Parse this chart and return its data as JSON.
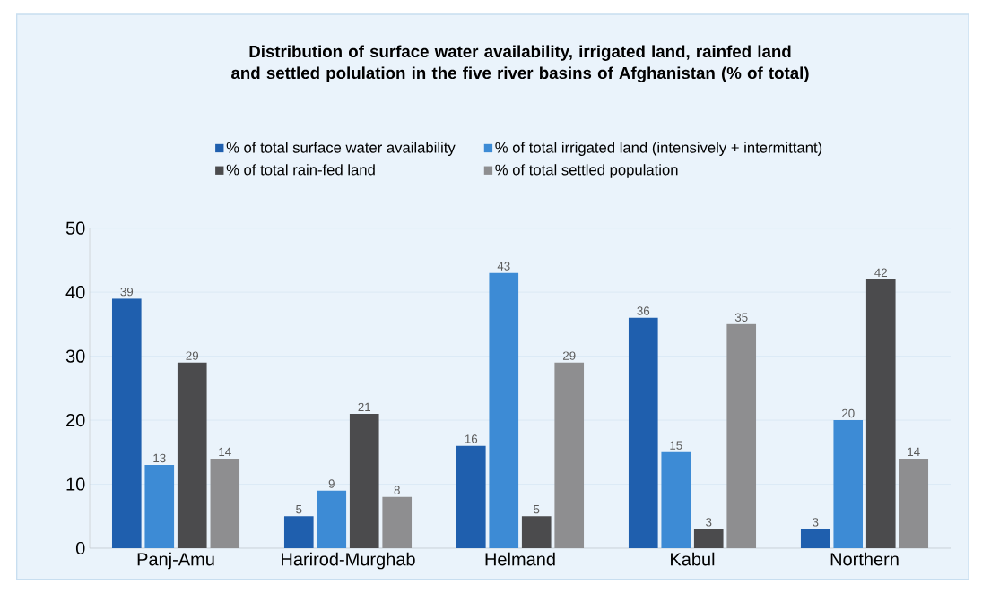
{
  "chart_data": {
    "type": "bar",
    "title": "Distribution of surface water availability, irrigated land, rainfed land and settled polulation in the five river basins of Afghanistan (% of total)",
    "categories": [
      "Panj-Amu",
      "Harirod-Murghab",
      "Helmand",
      "Kabul",
      "Northern"
    ],
    "series": [
      {
        "name": "% of total surface water availability",
        "color": "#1f5fae",
        "values": [
          39,
          5,
          16,
          36,
          3
        ]
      },
      {
        "name": "% of total irrigated land (intensively + intermittant)",
        "color": "#3d8bd5",
        "values": [
          13,
          9,
          43,
          15,
          20
        ]
      },
      {
        "name": "% of total rain-fed land",
        "color": "#4b4b4d",
        "values": [
          29,
          21,
          5,
          3,
          42
        ]
      },
      {
        "name": "% of total settled population",
        "color": "#8e8e90",
        "values": [
          14,
          8,
          29,
          35,
          14
        ]
      }
    ],
    "ylim": [
      0,
      50
    ],
    "yticks": [
      0,
      10,
      20,
      30,
      40,
      50
    ],
    "grid": "y",
    "legend": "top",
    "data_labels": true
  }
}
